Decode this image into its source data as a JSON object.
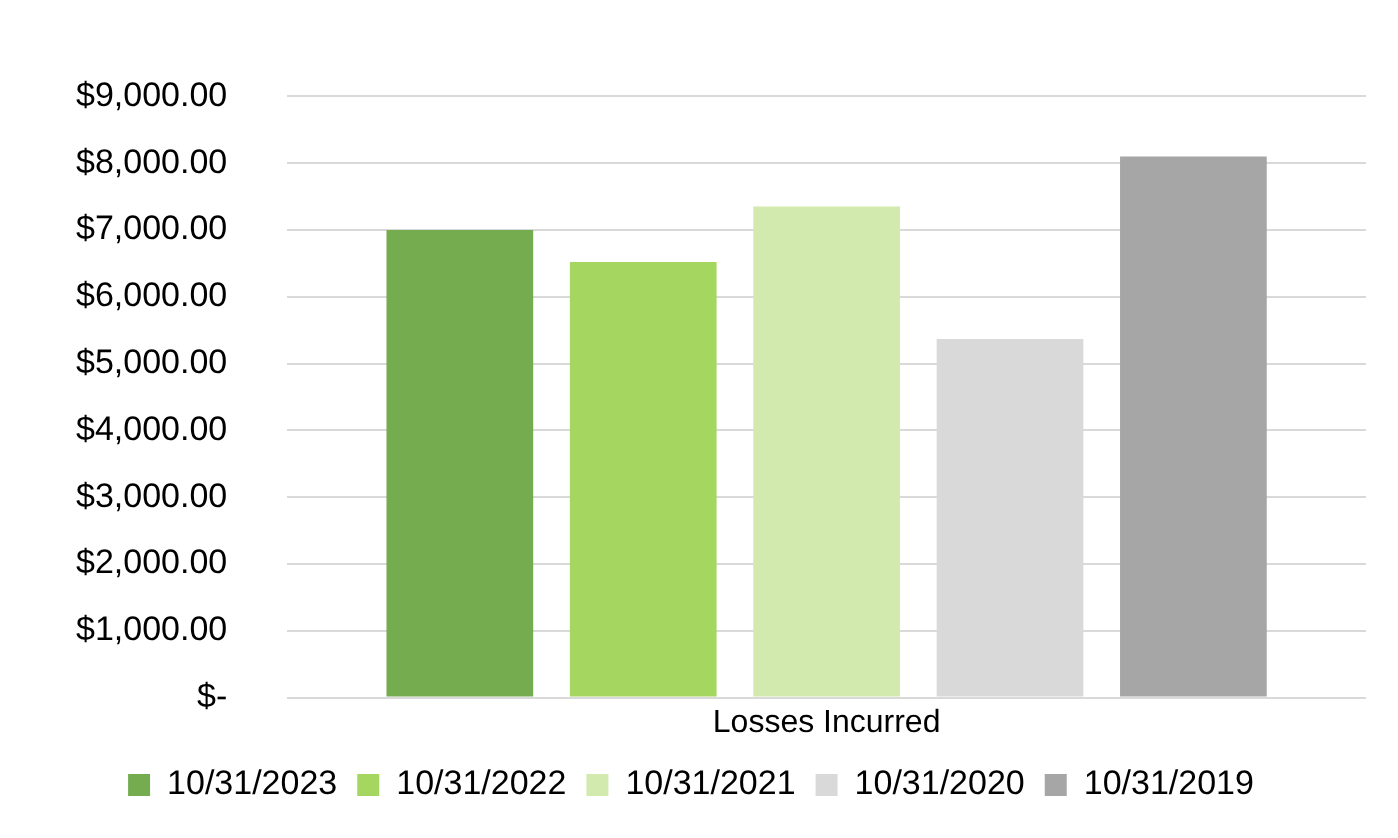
{
  "chart_data": {
    "type": "bar",
    "categories": [
      "Losses Incurred"
    ],
    "series": [
      {
        "name": "10/31/2023",
        "color": "#75ac50",
        "values": [
          7000
        ]
      },
      {
        "name": "10/31/2022",
        "color": "#a5d65f",
        "values": [
          6520
        ]
      },
      {
        "name": "10/31/2021",
        "color": "#d3eaaf",
        "values": [
          7350
        ]
      },
      {
        "name": "10/31/2020",
        "color": "#d9d9d9",
        "values": [
          5370
        ]
      },
      {
        "name": "10/31/2019",
        "color": "#a6a6a6",
        "values": [
          8100
        ]
      }
    ],
    "ylim": [
      0,
      9000
    ],
    "yticks": [
      {
        "value": 0,
        "label": "$-"
      },
      {
        "value": 1000,
        "label": "$1,000.00"
      },
      {
        "value": 2000,
        "label": "$2,000.00"
      },
      {
        "value": 3000,
        "label": "$3,000.00"
      },
      {
        "value": 4000,
        "label": "$4,000.00"
      },
      {
        "value": 5000,
        "label": "$5,000.00"
      },
      {
        "value": 6000,
        "label": "$6,000.00"
      },
      {
        "value": 7000,
        "label": "$7,000.00"
      },
      {
        "value": 8000,
        "label": "$8,000.00"
      },
      {
        "value": 9000,
        "label": "$9,000.00"
      }
    ],
    "grid": "y",
    "legend": "bottom"
  }
}
